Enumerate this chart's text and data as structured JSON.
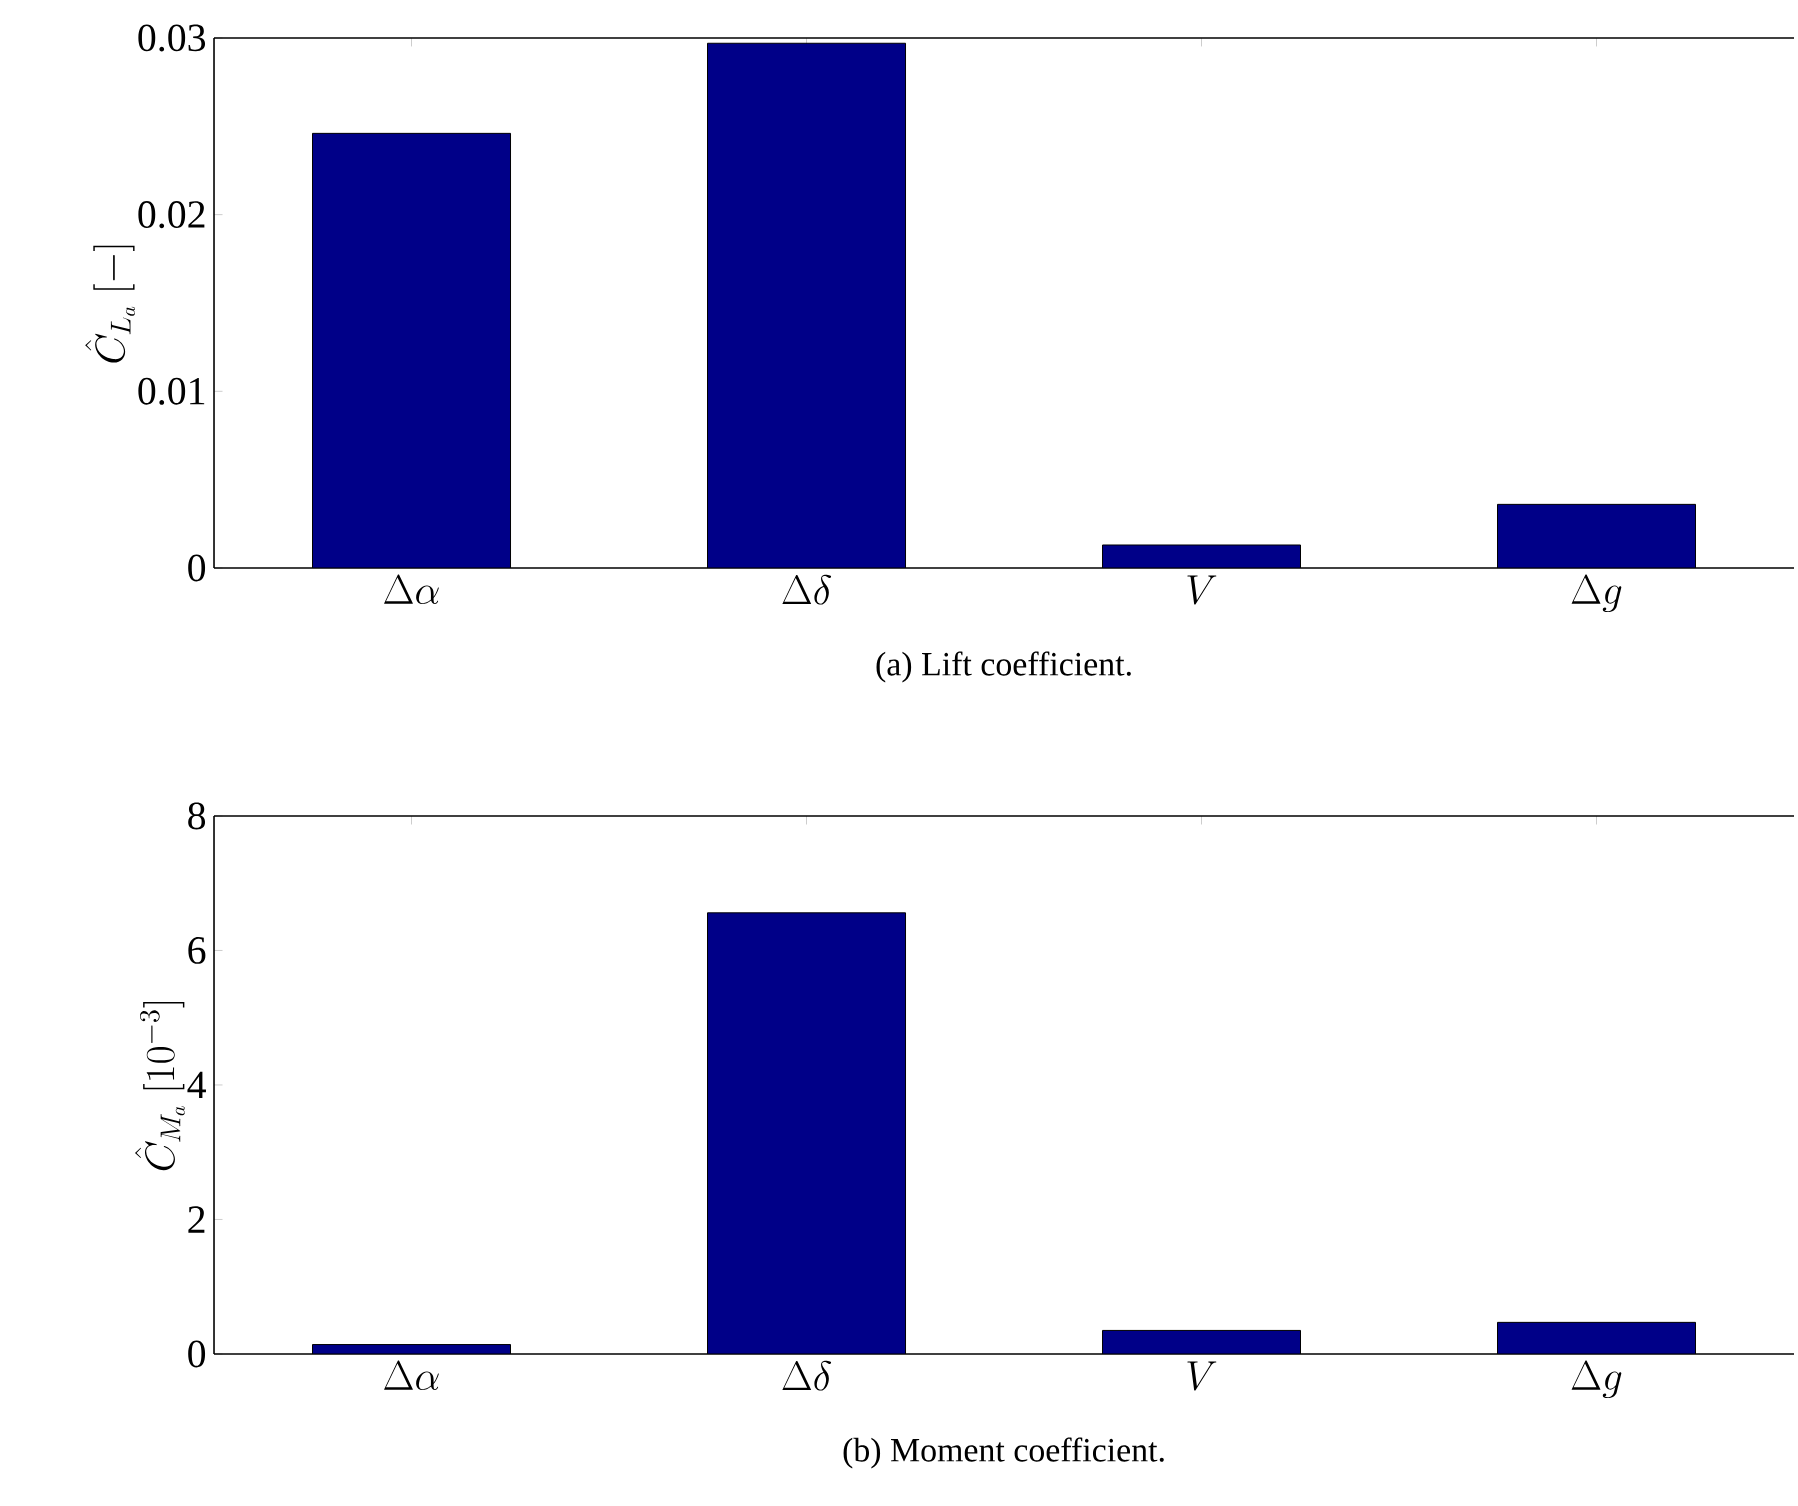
{
  "chart_data": [
    {
      "type": "bar",
      "title": "(a) Lift coefficient.",
      "ylabel": "\\hat{C}_{L_a}\\ [-]",
      "categories": [
        "\\Delta\\alpha",
        "\\Delta\\delta",
        "V",
        "\\Delta g"
      ],
      "values": [
        0.0246,
        0.0297,
        0.0013,
        0.0036
      ],
      "color": "#000088",
      "ylim": [
        0,
        0.03
      ],
      "yticks": [
        0,
        0.01,
        0.02,
        0.03
      ]
    },
    {
      "type": "bar",
      "title": "(b) Moment coefficient.",
      "ylabel": "\\hat{C}_{M_a}\\ [10^{-3}]",
      "categories": [
        "\\Delta\\alpha",
        "\\Delta\\delta",
        "V",
        "\\Delta g"
      ],
      "values": [
        0.14,
        6.56,
        0.35,
        0.47
      ],
      "color": "#000088",
      "ylim": [
        0,
        8
      ],
      "yticks": [
        0,
        2,
        4,
        6,
        8
      ]
    }
  ]
}
